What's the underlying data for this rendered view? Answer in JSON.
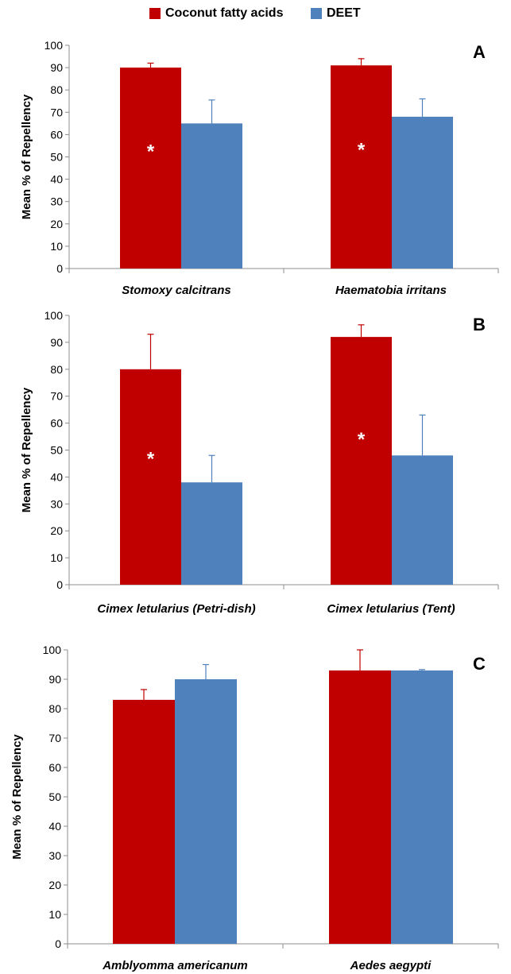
{
  "legend": {
    "items": [
      {
        "label": "Coconut fatty acids",
        "color": "#c00000"
      },
      {
        "label": "DEET",
        "color": "#4f81bd"
      }
    ]
  },
  "chart_data": [
    {
      "type": "bar",
      "panel_label": "A",
      "ylabel": "Mean % of Repellency",
      "ylim": [
        0,
        100
      ],
      "yticks": [
        0,
        10,
        20,
        30,
        40,
        50,
        60,
        70,
        80,
        90,
        100
      ],
      "categories": [
        "Stomoxy calcitrans",
        "Haematobia irritans"
      ],
      "series": [
        {
          "name": "Coconut fatty acids",
          "color": "#c00000",
          "values": [
            90,
            91
          ],
          "errors": [
            2,
            3
          ],
          "significance": [
            "*",
            "*"
          ]
        },
        {
          "name": "DEET",
          "color": "#4f81bd",
          "values": [
            65,
            68
          ],
          "errors": [
            10.5,
            8
          ],
          "significance": [
            "",
            ""
          ]
        }
      ]
    },
    {
      "type": "bar",
      "panel_label": "B",
      "ylabel": "Mean % of Repellency",
      "ylim": [
        0,
        100
      ],
      "yticks": [
        0,
        10,
        20,
        30,
        40,
        50,
        60,
        70,
        80,
        90,
        100
      ],
      "categories": [
        "Cimex letularius (Petri-dish)",
        "Cimex letularius (Tent)"
      ],
      "series": [
        {
          "name": "Coconut fatty acids",
          "color": "#c00000",
          "values": [
            80,
            92
          ],
          "errors": [
            13,
            4.5
          ],
          "significance": [
            "*",
            "*"
          ]
        },
        {
          "name": "DEET",
          "color": "#4f81bd",
          "values": [
            38,
            48
          ],
          "errors": [
            10,
            15
          ],
          "significance": [
            "",
            ""
          ]
        }
      ]
    },
    {
      "type": "bar",
      "panel_label": "C",
      "ylabel": "Mean % of Repellency",
      "ylim": [
        0,
        100
      ],
      "yticks": [
        0,
        10,
        20,
        30,
        40,
        50,
        60,
        70,
        80,
        90,
        100
      ],
      "categories": [
        "Amblyomma americanum",
        "Aedes aegypti"
      ],
      "series": [
        {
          "name": "Coconut fatty acids",
          "color": "#c00000",
          "values": [
            83,
            93
          ],
          "errors": [
            3.5,
            7
          ],
          "significance": [
            "",
            ""
          ]
        },
        {
          "name": "DEET",
          "color": "#4f81bd",
          "values": [
            90,
            93
          ],
          "errors": [
            5,
            0.3
          ],
          "significance": [
            "",
            ""
          ]
        }
      ]
    }
  ]
}
